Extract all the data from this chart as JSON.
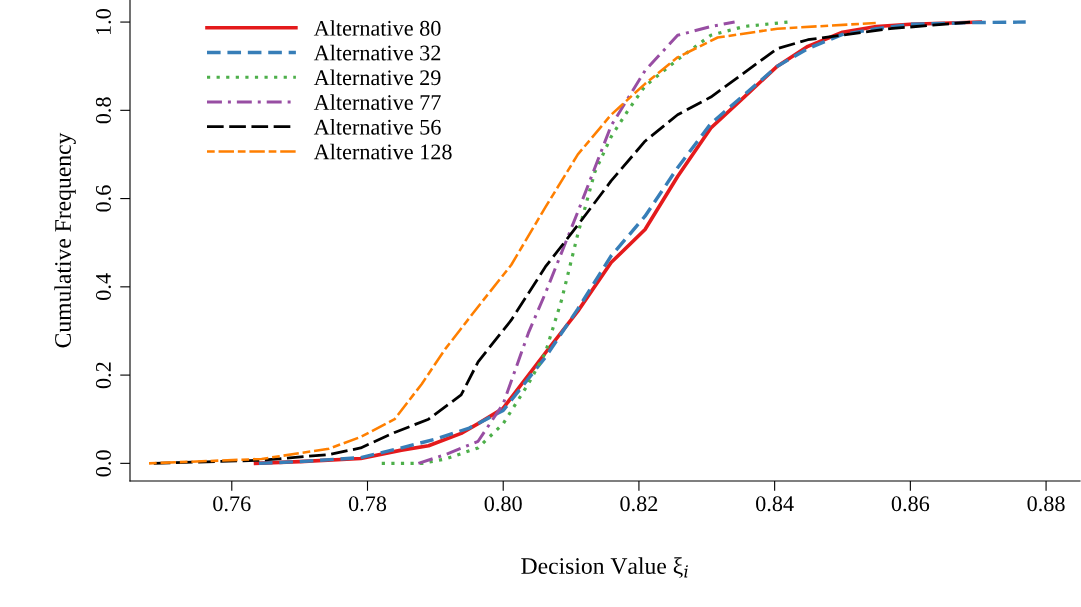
{
  "chart_data": {
    "type": "line",
    "xlabel": "Decision Value ξ$_{i}$",
    "ylabel": "Cumulative Frequency",
    "xlim": [
      0.745,
      0.885
    ],
    "ylim": [
      -0.04,
      1.05
    ],
    "xticks": [
      {
        "value": 0.76,
        "label": "0.76"
      },
      {
        "value": 0.78,
        "label": "0.78"
      },
      {
        "value": 0.8,
        "label": "0.80"
      },
      {
        "value": 0.82,
        "label": "0.82"
      },
      {
        "value": 0.84,
        "label": "0.84"
      },
      {
        "value": 0.86,
        "label": "0.86"
      },
      {
        "value": 0.88,
        "label": "0.88"
      }
    ],
    "yticks": [
      {
        "value": 0,
        "label": "0.0"
      },
      {
        "value": 0.2,
        "label": "0.2"
      },
      {
        "value": 0.4,
        "label": "0.4"
      },
      {
        "value": 0.6,
        "label": "0.6"
      },
      {
        "value": 0.8,
        "label": "0.8"
      },
      {
        "value": 1,
        "label": "1.0"
      }
    ],
    "grid": false,
    "legend": "top left",
    "marker": "none",
    "series": [
      {
        "name": "Alternative 80",
        "color": "#e41a1c",
        "line_style": "solid",
        "x": [
          0.7635,
          0.77,
          0.779,
          0.785,
          0.789,
          0.7938,
          0.7963,
          0.8,
          0.8062,
          0.811,
          0.8159,
          0.8209,
          0.8257,
          0.8306,
          0.8355,
          0.8404,
          0.8449,
          0.85,
          0.855,
          0.86,
          0.8703
        ],
        "values": [
          0,
          0.004,
          0.011,
          0.03,
          0.04,
          0.068,
          0.09,
          0.125,
          0.25,
          0.345,
          0.455,
          0.53,
          0.65,
          0.76,
          0.83,
          0.9,
          0.945,
          0.977,
          0.99,
          0.995,
          1.0
        ]
      },
      {
        "name": "Alternative 32",
        "color": "#377eb8",
        "line_style": "dashed",
        "x": [
          0.764,
          0.77,
          0.779,
          0.785,
          0.79,
          0.795,
          0.8,
          0.8062,
          0.811,
          0.8159,
          0.8209,
          0.8257,
          0.8306,
          0.8355,
          0.8404,
          0.8449,
          0.85,
          0.855,
          0.86,
          0.87,
          0.877
        ],
        "values": [
          0,
          0.004,
          0.013,
          0.035,
          0.055,
          0.08,
          0.12,
          0.24,
          0.35,
          0.47,
          0.56,
          0.67,
          0.77,
          0.835,
          0.9,
          0.94,
          0.972,
          0.985,
          0.995,
          0.999,
          1.0
        ]
      },
      {
        "name": "Alternative 29",
        "color": "#4daf4a",
        "line_style": "dotted",
        "x": [
          0.7821,
          0.788,
          0.7915,
          0.7963,
          0.8,
          0.8037,
          0.8062,
          0.8086,
          0.811,
          0.8135,
          0.8159,
          0.8184,
          0.8209,
          0.8233,
          0.8257,
          0.8306,
          0.8355,
          0.8419
        ],
        "values": [
          0,
          0,
          0.01,
          0.035,
          0.09,
          0.18,
          0.25,
          0.37,
          0.52,
          0.66,
          0.74,
          0.8,
          0.855,
          0.885,
          0.915,
          0.97,
          0.99,
          1.0
        ]
      },
      {
        "name": "Alternative 77",
        "color": "#984ea3",
        "line_style": "dashdot",
        "x": [
          0.7875,
          0.7915,
          0.7963,
          0.8,
          0.8037,
          0.8062,
          0.811,
          0.8159,
          0.8209,
          0.8257,
          0.8306,
          0.8341
        ],
        "values": [
          0,
          0.02,
          0.05,
          0.135,
          0.295,
          0.385,
          0.57,
          0.765,
          0.89,
          0.97,
          0.99,
          1.0
        ]
      },
      {
        "name": "Alternative 56",
        "color": "#000000",
        "line_style": "longdash",
        "x": [
          0.7485,
          0.7644,
          0.7743,
          0.779,
          0.784,
          0.789,
          0.7938,
          0.7963,
          0.8012,
          0.8062,
          0.811,
          0.8159,
          0.8209,
          0.8257,
          0.8306,
          0.8355,
          0.8404,
          0.8449,
          0.857,
          0.8688
        ],
        "values": [
          0,
          0.007,
          0.02,
          0.035,
          0.07,
          0.1,
          0.155,
          0.23,
          0.325,
          0.445,
          0.54,
          0.64,
          0.73,
          0.79,
          0.83,
          0.885,
          0.94,
          0.96,
          0.985,
          1.0
        ]
      },
      {
        "name": "Alternative 128",
        "color": "#ff7f00",
        "line_style": "twodash",
        "x": [
          0.7478,
          0.7644,
          0.7743,
          0.779,
          0.784,
          0.788,
          0.7915,
          0.7963,
          0.8012,
          0.8062,
          0.811,
          0.8159,
          0.8209,
          0.8257,
          0.8316,
          0.8404,
          0.8549
        ],
        "values": [
          0,
          0.01,
          0.033,
          0.06,
          0.1,
          0.18,
          0.26,
          0.355,
          0.45,
          0.58,
          0.7,
          0.79,
          0.86,
          0.92,
          0.965,
          0.985,
          0.998
        ]
      }
    ]
  }
}
